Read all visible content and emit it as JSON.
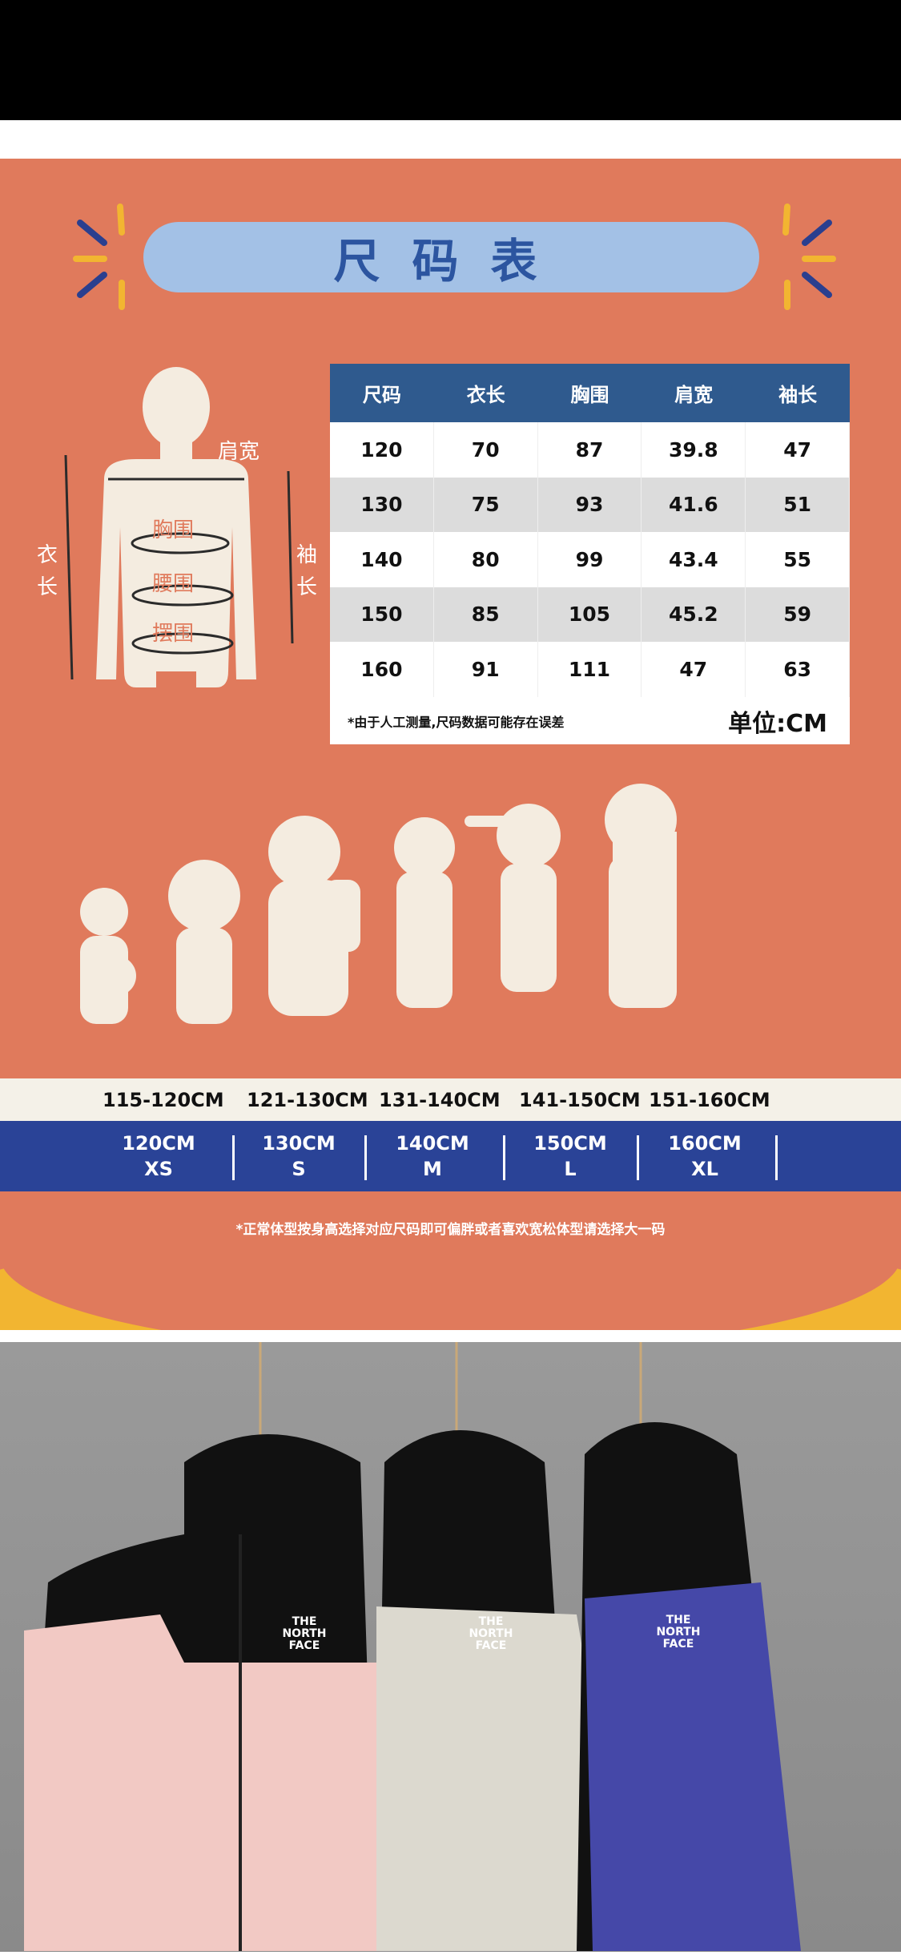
{
  "title": "尺码表",
  "body_labels": {
    "shoulder": "肩宽",
    "length": "衣长",
    "sleeve": "袖长",
    "chest": "胸围",
    "waist": "腰围",
    "hem": "摆围"
  },
  "table": {
    "headers": [
      "尺码",
      "衣长",
      "胸围",
      "肩宽",
      "袖长"
    ],
    "rows": [
      [
        "120",
        "70",
        "87",
        "39.8",
        "47"
      ],
      [
        "130",
        "75",
        "93",
        "41.6",
        "51"
      ],
      [
        "140",
        "80",
        "99",
        "43.4",
        "55"
      ],
      [
        "150",
        "85",
        "105",
        "45.2",
        "59"
      ],
      [
        "160",
        "91",
        "111",
        "47",
        "63"
      ]
    ],
    "note": "*由于人工测量,尺码数据可能存在误差",
    "unit": "单位:CM"
  },
  "heights": [
    "115-120CM",
    "121-130CM",
    "131-140CM",
    "141-150CM",
    "151-160CM"
  ],
  "sizes": [
    {
      "cm": "120CM",
      "label": "XS"
    },
    {
      "cm": "130CM",
      "label": "S"
    },
    {
      "cm": "140CM",
      "label": "M"
    },
    {
      "cm": "150CM",
      "label": "L"
    },
    {
      "cm": "160CM",
      "label": "XL"
    }
  ],
  "note": "*正常体型按身高选择对应尺码即可偏胖或者喜欢宽松体型请选择大一码",
  "photo": {
    "logos": [
      "THE NORTH FACE",
      "THE NORTH FACE",
      "THE NORTH FACE"
    ],
    "jacket_colors": [
      "#f2c9c4",
      "#dcd9cf",
      "#4548a8"
    ]
  },
  "colors": {
    "background": "#e07a5c",
    "pill": "#a3c1e6",
    "table_header": "#2f5a8e",
    "size_band": "#2a4397",
    "yellow": "#f2b531"
  }
}
